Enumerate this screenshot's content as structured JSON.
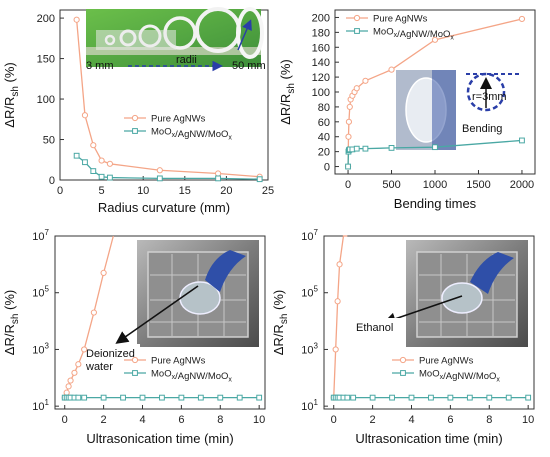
{
  "colors": {
    "pure": "#f4a587",
    "moox": "#4aa8a4",
    "axis": "#333333"
  },
  "chart_data": [
    {
      "type": "line",
      "panel": "top-left",
      "xlabel": "Radius curvature (mm)",
      "ylabel": "ΔR/R_sh (%)",
      "xlim": [
        0,
        25
      ],
      "ylim": [
        0,
        210
      ],
      "xticks": [
        0,
        5,
        10,
        15,
        20,
        25
      ],
      "yticks": [
        0,
        50,
        100,
        150,
        200
      ],
      "legend_position": "middle-right",
      "series": [
        {
          "name": "Pure AgNWs",
          "color_key": "pure",
          "marker": "circle",
          "x": [
            2,
            3,
            4,
            5,
            6,
            12,
            19,
            24
          ],
          "y": [
            198,
            80,
            43,
            24,
            20,
            12,
            8,
            4
          ]
        },
        {
          "name": "MoOx/AgNW/MoOx",
          "color_key": "moox",
          "marker": "square",
          "x": [
            2,
            3,
            4,
            5,
            6,
            12,
            19,
            24
          ],
          "y": [
            30,
            22,
            11,
            4,
            3,
            2,
            2,
            1
          ]
        }
      ],
      "inset": {
        "labels": [
          "3 mm",
          "radii",
          "50 mm"
        ]
      }
    },
    {
      "type": "line",
      "panel": "top-right",
      "xlabel": "Bending times",
      "ylabel": "ΔR/R_sh (%)",
      "xlim": [
        -150,
        2150
      ],
      "ylim": [
        -10,
        210
      ],
      "xticks": [
        0,
        500,
        1000,
        1500,
        2000
      ],
      "yticks": [
        0,
        20,
        40,
        60,
        80,
        100,
        120,
        140,
        160,
        180,
        200
      ],
      "legend_position": "top-left",
      "series": [
        {
          "name": "Pure AgNWs",
          "color_key": "pure",
          "marker": "circle",
          "x": [
            0,
            5,
            10,
            20,
            30,
            50,
            75,
            100,
            200,
            500,
            1000,
            2000
          ],
          "y": [
            0,
            40,
            60,
            80,
            90,
            95,
            100,
            105,
            115,
            130,
            170,
            198
          ]
        },
        {
          "name": "MoOx/AgNW/MoOx",
          "color_key": "moox",
          "marker": "square",
          "x": [
            0,
            5,
            10,
            20,
            50,
            100,
            200,
            500,
            1000,
            2000
          ],
          "y": [
            0,
            20,
            22,
            23,
            23,
            24,
            24,
            25,
            26,
            35
          ]
        }
      ],
      "inset": {
        "labels": [
          "r=3mm",
          "Bending"
        ]
      }
    },
    {
      "type": "line",
      "panel": "bottom-left",
      "xlabel": "Ultrasonication time (min)",
      "ylabel": "ΔR/R_sh (%)",
      "scale_y": "log",
      "xlim": [
        -0.5,
        10.3
      ],
      "ylim_exp": [
        0.9,
        7
      ],
      "xticks": [
        0,
        2,
        4,
        6,
        8,
        10
      ],
      "yticks_exp": [
        1,
        3,
        5,
        7
      ],
      "tick_base": "10",
      "legend_position": "bottom-right",
      "series": [
        {
          "name": "Pure AgNWs",
          "color_key": "pure",
          "marker": "circle",
          "x": [
            0,
            0.1,
            0.2,
            0.3,
            0.5,
            0.7,
            1,
            1.5,
            2,
            2.5
          ],
          "y": [
            20,
            30,
            50,
            80,
            150,
            300,
            1000,
            20000,
            500000,
            10000000
          ]
        },
        {
          "name": "MoOx/AgNW/MoOx",
          "color_key": "moox",
          "marker": "square",
          "x": [
            0,
            0.1,
            0.2,
            0.3,
            0.5,
            0.7,
            1,
            2,
            3,
            4,
            5,
            6,
            7,
            8,
            9,
            10
          ],
          "y": [
            20,
            20,
            20,
            20,
            20,
            20,
            20,
            20,
            20,
            20,
            20,
            20,
            20,
            20,
            20,
            20
          ]
        }
      ],
      "annotation": [
        "Deionized",
        "water"
      ]
    },
    {
      "type": "line",
      "panel": "bottom-right",
      "xlabel": "Ultrasonication time (min)",
      "ylabel": "ΔR/R_sh (%)",
      "scale_y": "log",
      "xlim": [
        -0.5,
        10.3
      ],
      "ylim_exp": [
        0.9,
        7
      ],
      "xticks": [
        0,
        2,
        4,
        6,
        8,
        10
      ],
      "yticks_exp": [
        1,
        3,
        5,
        7
      ],
      "tick_base": "10",
      "legend_position": "bottom-right",
      "series": [
        {
          "name": "Pure AgNWs",
          "color_key": "pure",
          "marker": "circle",
          "x": [
            0,
            0.1,
            0.2,
            0.3,
            0.5,
            0.7
          ],
          "y": [
            20,
            1000,
            50000,
            1000000,
            10000000,
            100000000
          ]
        },
        {
          "name": "MoOx/AgNW/MoOx",
          "color_key": "moox",
          "marker": "square",
          "x": [
            0,
            0.1,
            0.2,
            0.3,
            0.5,
            0.7,
            1,
            2,
            3,
            4,
            5,
            6,
            7,
            8,
            9,
            10
          ],
          "y": [
            20,
            20,
            20,
            20,
            20,
            20,
            20,
            20,
            20,
            20,
            20,
            20,
            20,
            20,
            20,
            20
          ]
        }
      ],
      "annotation": [
        "Ethanol"
      ]
    }
  ]
}
